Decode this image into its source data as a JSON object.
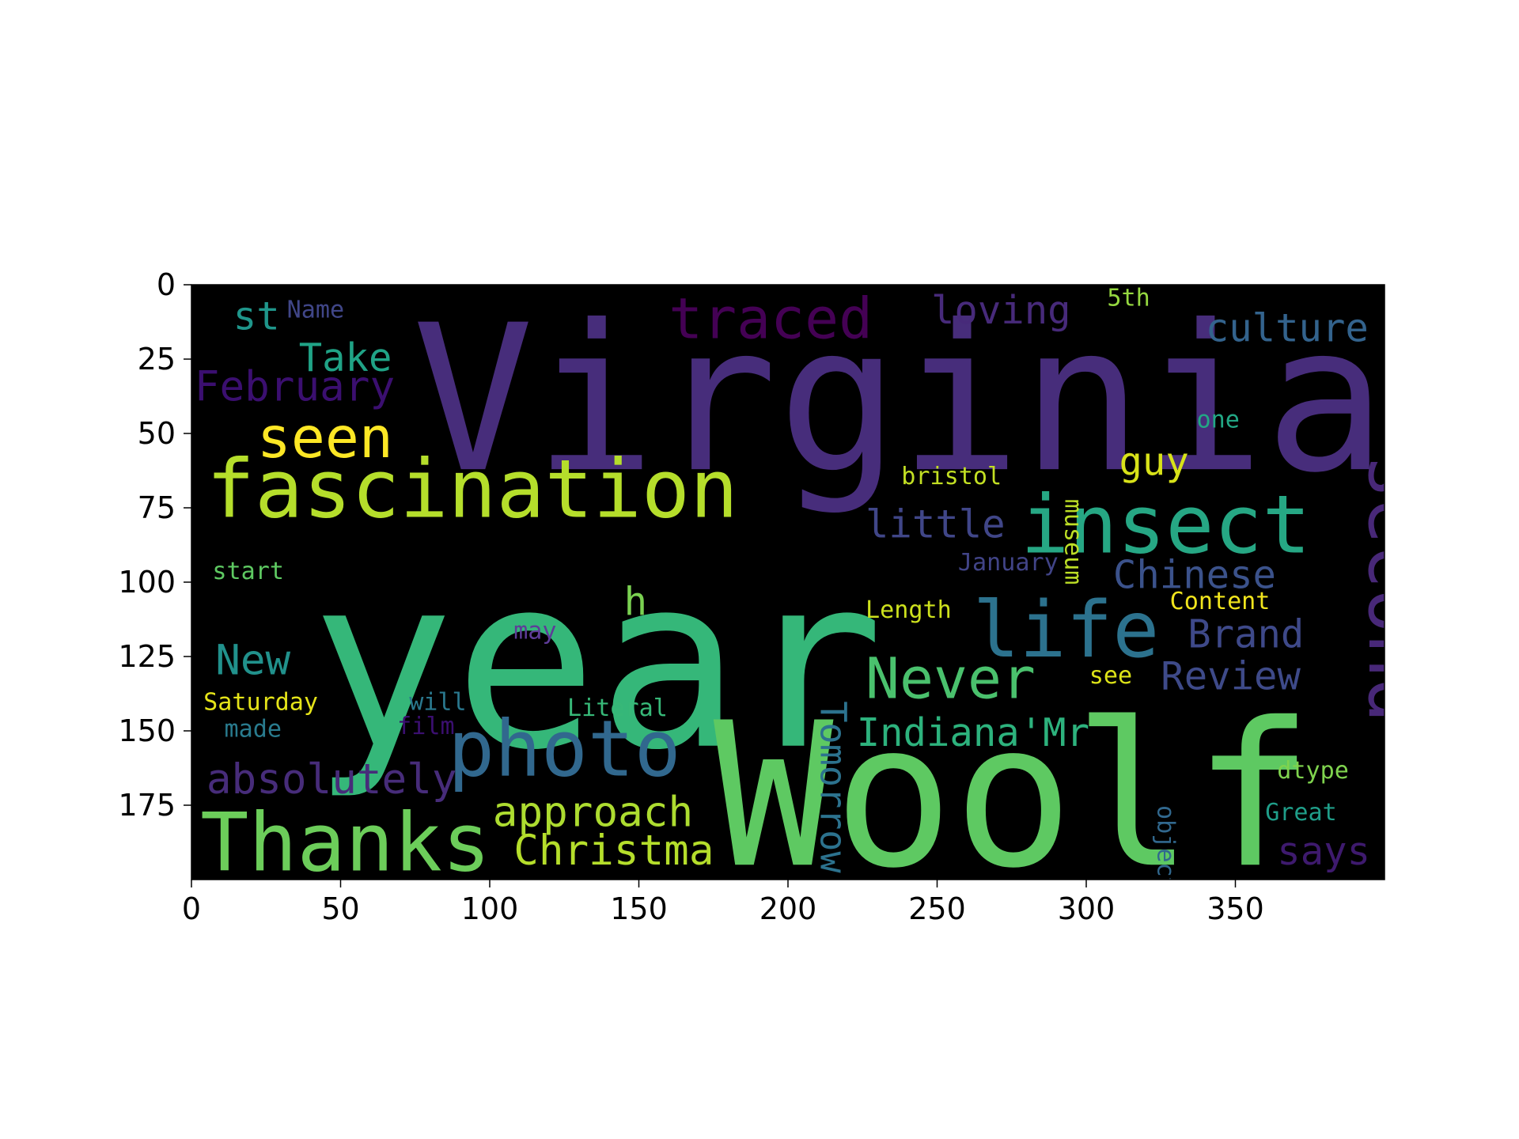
{
  "chart_data": {
    "type": "wordcloud",
    "image_extent": {
      "x": [
        0,
        400
      ],
      "y": [
        0,
        200
      ]
    },
    "y_axis_inverted": true,
    "x_ticks": [
      "0",
      "50",
      "100",
      "150",
      "200",
      "250",
      "300",
      "350"
    ],
    "y_ticks": [
      "0",
      "25",
      "50",
      "75",
      "100",
      "125",
      "150",
      "175"
    ],
    "background": "#000000",
    "words": [
      {
        "text": "Virginia",
        "x": 74,
        "y": 62,
        "size": 68,
        "color": "#472d7b"
      },
      {
        "text": "year",
        "x": 40,
        "y": 155,
        "size": 80,
        "color": "#35b779"
      },
      {
        "text": "Woolf",
        "x": 175,
        "y": 195,
        "size": 67,
        "color": "#5ec962"
      },
      {
        "text": "fascination",
        "x": 5,
        "y": 78,
        "size": 27,
        "color": "#b5de2b"
      },
      {
        "text": "Thanks",
        "x": 3,
        "y": 197,
        "size": 27,
        "color": "#6ccd5a"
      },
      {
        "text": "photo",
        "x": 86,
        "y": 165,
        "size": 26,
        "color": "#31688e"
      },
      {
        "text": "insect",
        "x": 278,
        "y": 90,
        "size": 27,
        "color": "#26a784"
      },
      {
        "text": "life",
        "x": 262,
        "y": 125,
        "size": 26,
        "color": "#2c728e"
      },
      {
        "text": "second",
        "x": 395,
        "y": 57,
        "size": 25,
        "color": "#482878",
        "vertical": true
      },
      {
        "text": "seen",
        "x": 22,
        "y": 58,
        "size": 19,
        "color": "#fde725"
      },
      {
        "text": "traced",
        "x": 160,
        "y": 18,
        "size": 19,
        "color": "#440154"
      },
      {
        "text": "Never",
        "x": 226,
        "y": 139,
        "size": 19,
        "color": "#4ac16d"
      },
      {
        "text": "approach",
        "x": 101,
        "y": 182,
        "size": 14,
        "color": "#addc30"
      },
      {
        "text": "Christma",
        "x": 108,
        "y": 195,
        "size": 14,
        "color": "#b5de2b"
      },
      {
        "text": "absolutely",
        "x": 5,
        "y": 171,
        "size": 14,
        "color": "#472c7a"
      },
      {
        "text": "February",
        "x": 1,
        "y": 39,
        "size": 14,
        "color": "#3b0f70"
      },
      {
        "text": "Take",
        "x": 36,
        "y": 29,
        "size": 13,
        "color": "#20a386"
      },
      {
        "text": "st",
        "x": 14,
        "y": 15,
        "size": 13,
        "color": "#1f968b"
      },
      {
        "text": "New",
        "x": 8,
        "y": 131,
        "size": 14,
        "color": "#21918c"
      },
      {
        "text": "Indiana'Mr",
        "x": 223,
        "y": 155,
        "size": 13,
        "color": "#2db27d"
      },
      {
        "text": "culture",
        "x": 340,
        "y": 19,
        "size": 13,
        "color": "#33638d"
      },
      {
        "text": "loving",
        "x": 248,
        "y": 13,
        "size": 13,
        "color": "#472a7a"
      },
      {
        "text": "little",
        "x": 226,
        "y": 85,
        "size": 13,
        "color": "#404688"
      },
      {
        "text": "Chinese",
        "x": 309,
        "y": 102,
        "size": 13,
        "color": "#3b528b"
      },
      {
        "text": "Brand",
        "x": 334,
        "y": 122,
        "size": 13,
        "color": "#3e4989"
      },
      {
        "text": "Review",
        "x": 325,
        "y": 136,
        "size": 13,
        "color": "#3e4a89"
      },
      {
        "text": "guy",
        "x": 311,
        "y": 64,
        "size": 13,
        "color": "#d8e219"
      },
      {
        "text": "says",
        "x": 364,
        "y": 195,
        "size": 13,
        "color": "#3e1a6e"
      },
      {
        "text": "Tomorrow",
        "x": 211,
        "y": 140,
        "size": 12,
        "color": "#2c728e",
        "vertical": true
      },
      {
        "text": "h",
        "x": 145,
        "y": 111,
        "size": 13,
        "color": "#7ad151"
      },
      {
        "text": "object",
        "x": 324,
        "y": 175,
        "size": 8,
        "color": "#31688e",
        "vertical": true
      },
      {
        "text": "museum",
        "x": 293,
        "y": 72,
        "size": 8,
        "color": "#bddf26",
        "vertical": true
      },
      {
        "text": "Name",
        "x": 32,
        "y": 11,
        "size": 8,
        "color": "#404688"
      },
      {
        "text": "5th",
        "x": 307,
        "y": 7,
        "size": 8,
        "color": "#95d840"
      },
      {
        "text": "one",
        "x": 337,
        "y": 48,
        "size": 8,
        "color": "#22a785"
      },
      {
        "text": "bristol",
        "x": 238,
        "y": 67,
        "size": 8,
        "color": "#c2df23"
      },
      {
        "text": "start",
        "x": 7,
        "y": 99,
        "size": 8,
        "color": "#5ec962"
      },
      {
        "text": "January",
        "x": 257,
        "y": 96,
        "size": 8,
        "color": "#414487"
      },
      {
        "text": "Content",
        "x": 328,
        "y": 109,
        "size": 8,
        "color": "#f1e51d"
      },
      {
        "text": "Length",
        "x": 226,
        "y": 112,
        "size": 8,
        "color": "#cde11d"
      },
      {
        "text": "may",
        "x": 108,
        "y": 119,
        "size": 8,
        "color": "#5e3c99"
      },
      {
        "text": "see",
        "x": 301,
        "y": 134,
        "size": 8,
        "color": "#dde318"
      },
      {
        "text": "Saturday",
        "x": 4,
        "y": 143,
        "size": 8,
        "color": "#e5e419"
      },
      {
        "text": "will",
        "x": 73,
        "y": 143,
        "size": 8,
        "color": "#2a788e"
      },
      {
        "text": "Literal",
        "x": 126,
        "y": 145,
        "size": 8,
        "color": "#37b878"
      },
      {
        "text": "made",
        "x": 11,
        "y": 152,
        "size": 8,
        "color": "#297b8e"
      },
      {
        "text": "film",
        "x": 69,
        "y": 151,
        "size": 8,
        "color": "#3b0f70"
      },
      {
        "text": "dtype",
        "x": 364,
        "y": 166,
        "size": 8,
        "color": "#7fd34e"
      },
      {
        "text": "Great",
        "x": 360,
        "y": 180,
        "size": 8,
        "color": "#1f9e89"
      }
    ]
  }
}
